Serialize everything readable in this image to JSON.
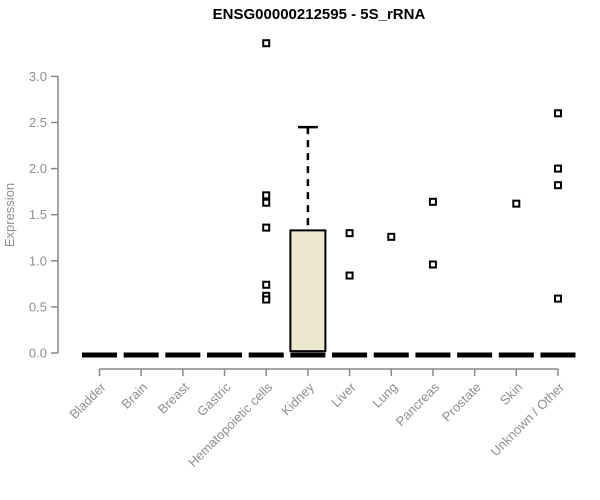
{
  "title": "ENSG00000212595 - 5S_rRNA",
  "chart_data": {
    "type": "boxplot",
    "title": "ENSG00000212595 - 5S_rRNA",
    "ylabel": "Expression",
    "xlabel": "",
    "ylim": [
      0.0,
      3.4
    ],
    "yticks": [
      0.0,
      0.5,
      1.0,
      1.5,
      2.0,
      2.5,
      3.0
    ],
    "yticklabels": [
      "0.0",
      "0.5",
      "1.0",
      "1.5",
      "2.0",
      "2.5",
      "3.0"
    ],
    "grid": false,
    "legend": false,
    "categories": [
      "Bladder",
      "Brain",
      "Breast",
      "Gastric",
      "Hematopoietic cells",
      "Kidney",
      "Liver",
      "Lung",
      "Pancreas",
      "Prostate",
      "Skin",
      "Unknown / Other"
    ],
    "boxes": [
      {
        "category": "Bladder",
        "median": 0,
        "q1": 0,
        "q3": 0,
        "whisker_low": 0,
        "whisker_high": 0,
        "outliers": []
      },
      {
        "category": "Brain",
        "median": 0,
        "q1": 0,
        "q3": 0,
        "whisker_low": 0,
        "whisker_high": 0,
        "outliers": []
      },
      {
        "category": "Breast",
        "median": 0,
        "q1": 0,
        "q3": 0,
        "whisker_low": 0,
        "whisker_high": 0,
        "outliers": []
      },
      {
        "category": "Gastric",
        "median": 0,
        "q1": 0,
        "q3": 0,
        "whisker_low": 0,
        "whisker_high": 0,
        "outliers": []
      },
      {
        "category": "Hematopoietic cells",
        "median": 0,
        "q1": 0,
        "q3": 0,
        "whisker_low": 0,
        "whisker_high": 0,
        "outliers": [
          3.36,
          1.71,
          1.63,
          1.36,
          0.74,
          0.62,
          0.58
        ]
      },
      {
        "category": "Kidney",
        "median": 0,
        "q1": 0.02,
        "q3": 1.33,
        "whisker_low": 0,
        "whisker_high": 2.45,
        "outliers": []
      },
      {
        "category": "Liver",
        "median": 0,
        "q1": 0,
        "q3": 0,
        "whisker_low": 0,
        "whisker_high": 0,
        "outliers": [
          1.3,
          0.84
        ]
      },
      {
        "category": "Lung",
        "median": 0,
        "q1": 0,
        "q3": 0,
        "whisker_low": 0,
        "whisker_high": 0,
        "outliers": [
          1.26
        ]
      },
      {
        "category": "Pancreas",
        "median": 0,
        "q1": 0,
        "q3": 0,
        "whisker_low": 0,
        "whisker_high": 0,
        "outliers": [
          1.64,
          0.96
        ]
      },
      {
        "category": "Prostate",
        "median": 0,
        "q1": 0,
        "q3": 0,
        "whisker_low": 0,
        "whisker_high": 0,
        "outliers": []
      },
      {
        "category": "Skin",
        "median": 0,
        "q1": 0,
        "q3": 0,
        "whisker_low": 0,
        "whisker_high": 0,
        "outliers": [
          1.62
        ]
      },
      {
        "category": "Unknown / Other",
        "median": 0,
        "q1": 0,
        "q3": 0,
        "whisker_low": 0,
        "whisker_high": 0,
        "outliers": [
          2.6,
          2.0,
          1.82,
          0.59
        ]
      }
    ],
    "colors": {
      "box_fill": "#ece8cd",
      "box_border": "#000000",
      "median": "#000000",
      "outlier_stroke": "#000000",
      "outlier_fill": "#ffffff",
      "axis": "#878787",
      "tick_label": "#8f8f8f",
      "title": "#000000"
    }
  }
}
